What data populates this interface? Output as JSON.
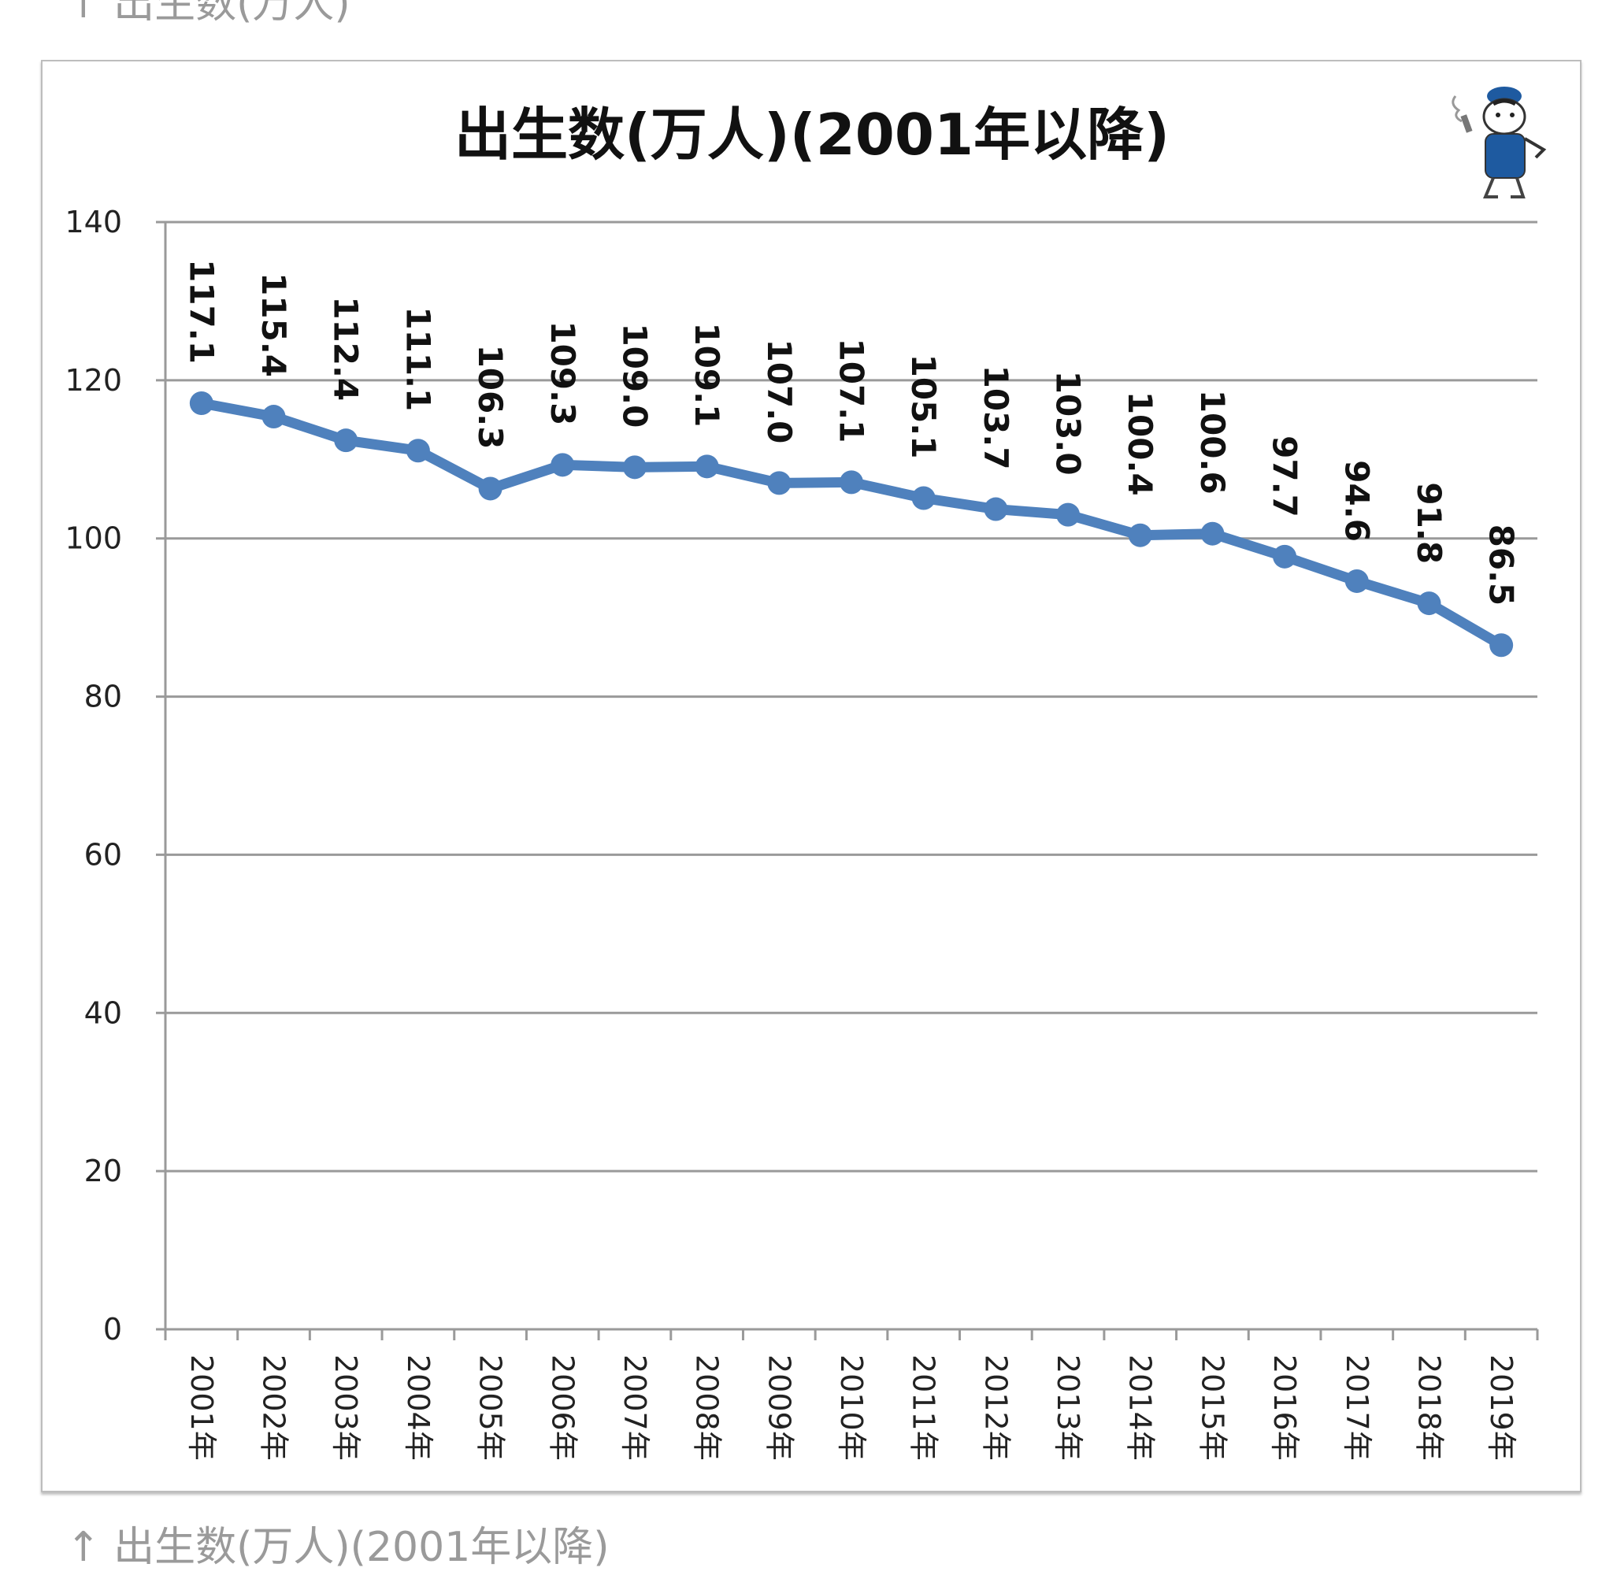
{
  "captions": {
    "top": "↑ 出生数(万人)",
    "bottom": "↑ 出生数(万人)(2001年以降)"
  },
  "chart_data": {
    "type": "line",
    "title": "出生数(万人)(2001年以降)",
    "xlabel": "",
    "ylabel": "",
    "categories": [
      "2001年",
      "2002年",
      "2003年",
      "2004年",
      "2005年",
      "2006年",
      "2007年",
      "2008年",
      "2009年",
      "2010年",
      "2011年",
      "2012年",
      "2013年",
      "2014年",
      "2015年",
      "2016年",
      "2017年",
      "2018年",
      "2019年"
    ],
    "values": [
      117.1,
      115.4,
      112.4,
      111.1,
      106.3,
      109.3,
      109.0,
      109.1,
      107.0,
      107.1,
      105.1,
      103.7,
      103.0,
      100.4,
      100.6,
      97.7,
      94.6,
      91.8,
      86.5
    ],
    "data_labels": [
      "117.1",
      "115.4",
      "112.4",
      "111.1",
      "106.3",
      "109.3",
      "109.0",
      "109.1",
      "107.0",
      "107.1",
      "105.1",
      "103.7",
      "103.0",
      "100.4",
      "100.6",
      "97.7",
      "94.6",
      "91.8",
      "86.5"
    ],
    "yticks": [
      0,
      20,
      40,
      60,
      80,
      100,
      120,
      140
    ],
    "ylim": [
      0,
      140
    ],
    "grid": true,
    "legend": "none",
    "line_color": "#4f81bd",
    "mascot_icon": "cat-mascot-icon"
  }
}
